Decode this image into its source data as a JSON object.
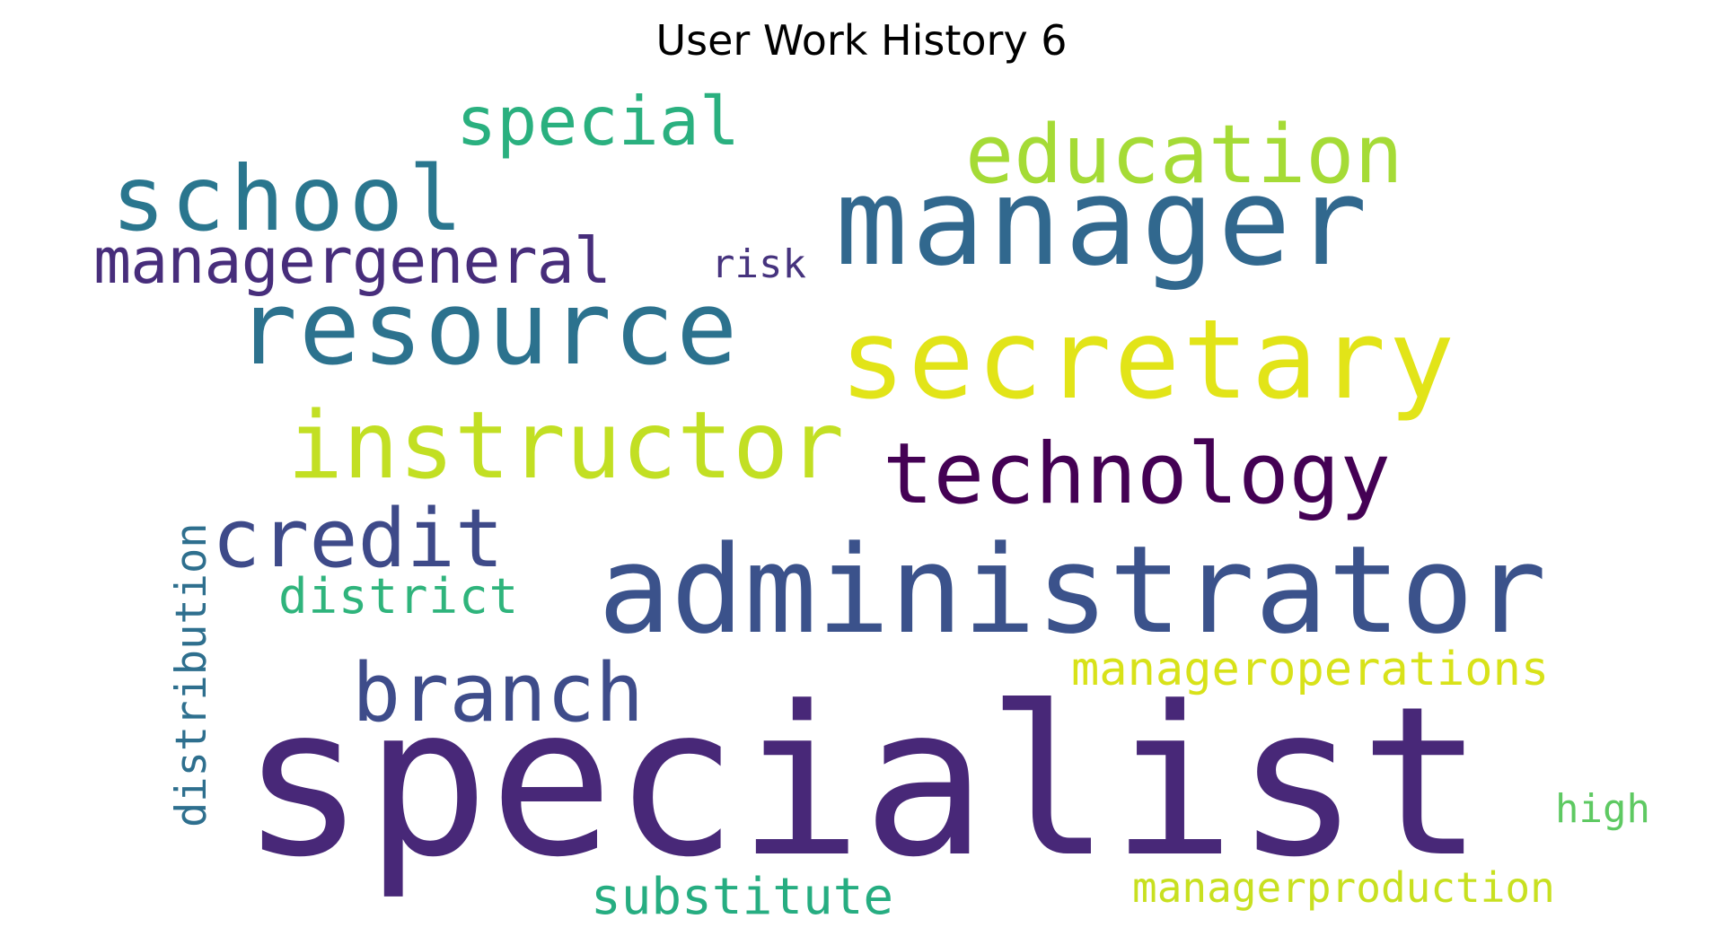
{
  "title": "User Work History 6",
  "words": [
    {
      "id": "specialist",
      "text": "specialist",
      "color": "#482878"
    },
    {
      "id": "administrator",
      "text": "administrator",
      "color": "#3b528b"
    },
    {
      "id": "manager",
      "text": "manager",
      "color": "#31688e"
    },
    {
      "id": "secretary",
      "text": "secretary",
      "color": "#e2e418"
    },
    {
      "id": "resource",
      "text": "resource",
      "color": "#2c728e"
    },
    {
      "id": "instructor",
      "text": "instructor",
      "color": "#c2df23"
    },
    {
      "id": "technology",
      "text": "technology",
      "color": "#440154"
    },
    {
      "id": "school",
      "text": "school",
      "color": "#2a768e"
    },
    {
      "id": "education",
      "text": "education",
      "color": "#a5db36"
    },
    {
      "id": "credit",
      "text": "credit",
      "color": "#3e4a89"
    },
    {
      "id": "branch",
      "text": "branch",
      "color": "#3e4c8a"
    },
    {
      "id": "managergeneral",
      "text": "managergeneral",
      "color": "#472d7b"
    },
    {
      "id": "special",
      "text": "special",
      "color": "#2ab07f"
    },
    {
      "id": "manageroperations",
      "text": "manageroperations",
      "color": "#d8e219"
    },
    {
      "id": "district",
      "text": "district",
      "color": "#2fb47c"
    },
    {
      "id": "substitute",
      "text": "substitute",
      "color": "#26ad81"
    },
    {
      "id": "managerproduction",
      "text": "managerproduction",
      "color": "#c8e020"
    },
    {
      "id": "risk",
      "text": "risk",
      "color": "#46337e"
    },
    {
      "id": "high",
      "text": "high",
      "color": "#5ec962"
    },
    {
      "id": "distribution",
      "text": "distribution",
      "color": "#2e6f8e"
    }
  ]
}
